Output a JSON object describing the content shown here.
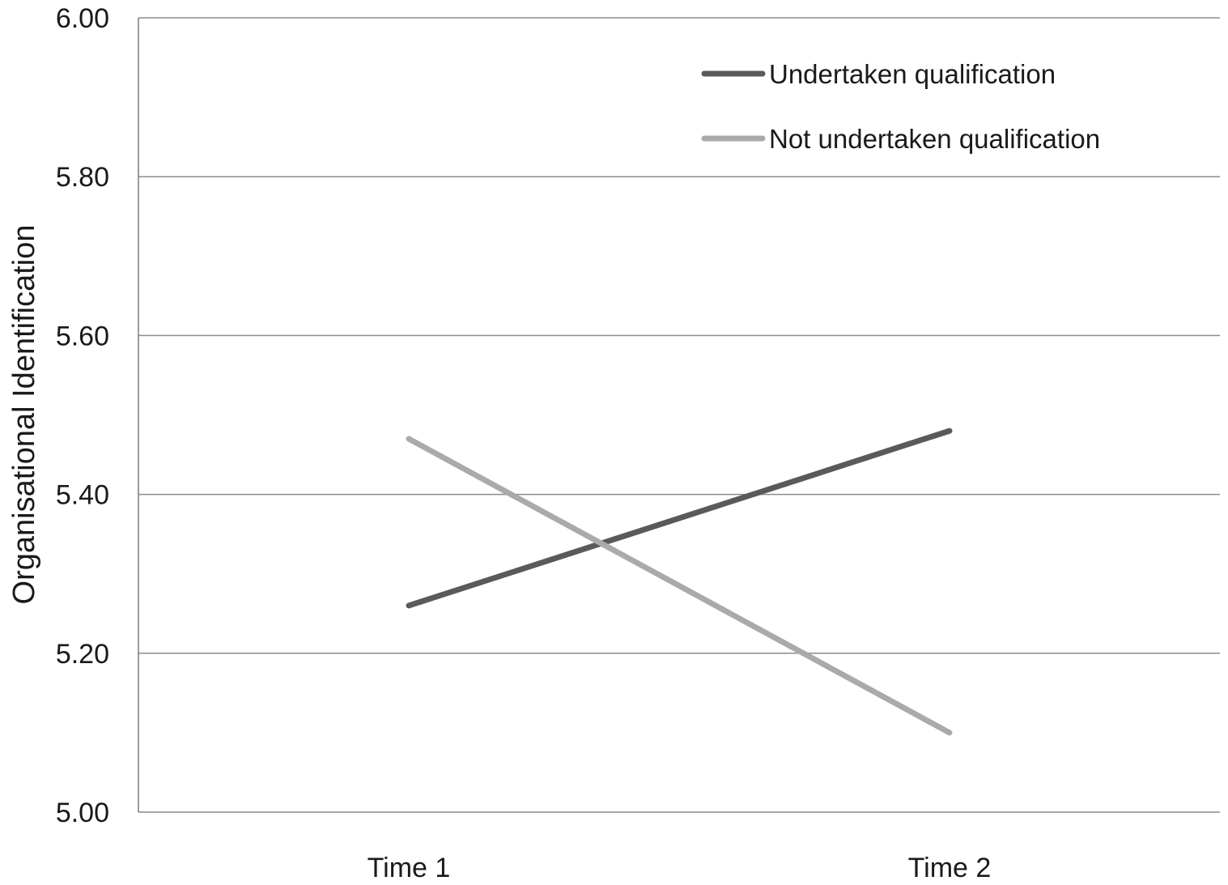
{
  "chart_data": {
    "type": "line",
    "title": "",
    "xlabel": "",
    "ylabel": "Organisational Identification",
    "categories": [
      "Time 1",
      "Time 2"
    ],
    "ylim": [
      5.0,
      6.0
    ],
    "yticks": [
      "5.00",
      "5.20",
      "5.40",
      "5.60",
      "5.80",
      "6.00"
    ],
    "grid": "horizontal",
    "legend_position": "top-right",
    "series": [
      {
        "name": "Undertaken qualification",
        "values": [
          5.26,
          5.48
        ],
        "color": "#5a5a5a"
      },
      {
        "name": "Not undertaken qualification",
        "values": [
          5.47,
          5.1
        ],
        "color": "#aaaaaa"
      }
    ]
  }
}
